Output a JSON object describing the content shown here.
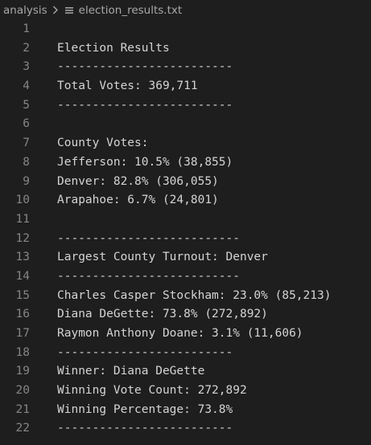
{
  "breadcrumb": {
    "folder": "analysis",
    "file": "election_results.txt",
    "separator_icon": "chevron-right-icon",
    "file_icon": "text-file-icon"
  },
  "editor": {
    "lines": [
      {
        "number": "1",
        "text": ""
      },
      {
        "number": "2",
        "text": "Election Results"
      },
      {
        "number": "3",
        "text": "-------------------------"
      },
      {
        "number": "4",
        "text": "Total Votes: 369,711"
      },
      {
        "number": "5",
        "text": "-------------------------"
      },
      {
        "number": "6",
        "text": ""
      },
      {
        "number": "7",
        "text": "County Votes:"
      },
      {
        "number": "8",
        "text": "Jefferson: 10.5% (38,855)"
      },
      {
        "number": "9",
        "text": "Denver: 82.8% (306,055)"
      },
      {
        "number": "10",
        "text": "Arapahoe: 6.7% (24,801)"
      },
      {
        "number": "11",
        "text": ""
      },
      {
        "number": "12",
        "text": "--------------------------"
      },
      {
        "number": "13",
        "text": "Largest County Turnout: Denver"
      },
      {
        "number": "14",
        "text": "--------------------------"
      },
      {
        "number": "15",
        "text": "Charles Casper Stockham: 23.0% (85,213)"
      },
      {
        "number": "16",
        "text": "Diana DeGette: 73.8% (272,892)"
      },
      {
        "number": "17",
        "text": "Raymon Anthony Doane: 3.1% (11,606)"
      },
      {
        "number": "18",
        "text": "-------------------------"
      },
      {
        "number": "19",
        "text": "Winner: Diana DeGette"
      },
      {
        "number": "20",
        "text": "Winning Vote Count: 272,892"
      },
      {
        "number": "21",
        "text": "Winning Percentage: 73.8%"
      },
      {
        "number": "22",
        "text": "-------------------------"
      }
    ]
  },
  "colors": {
    "background": "#1e1e1e",
    "text": "#d4d4d4",
    "line_number": "#858585",
    "breadcrumb": "#a9a9a9"
  }
}
